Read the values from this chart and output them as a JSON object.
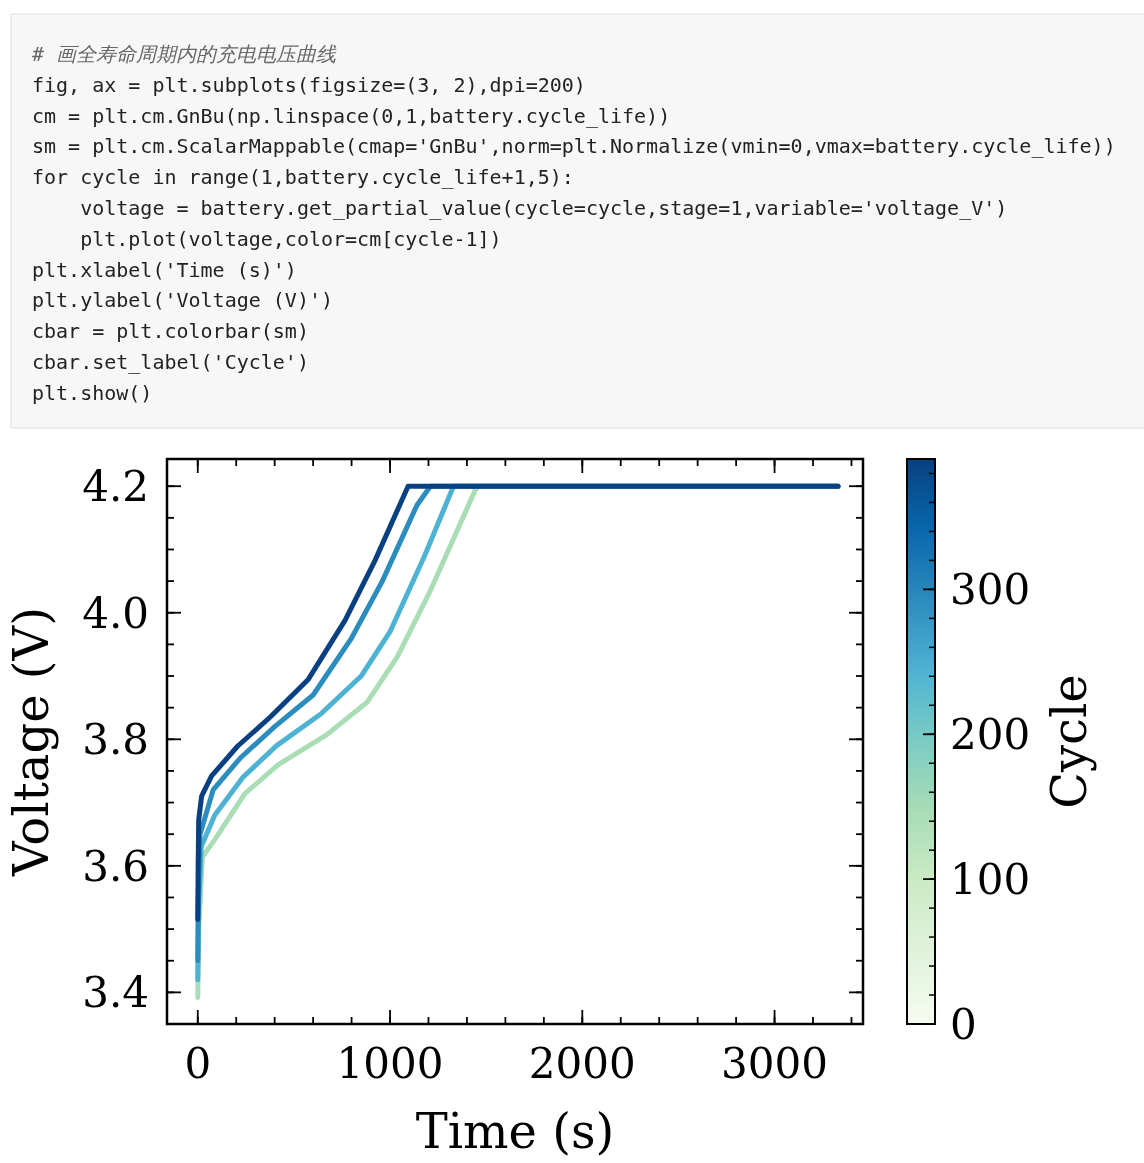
{
  "chart_data": {
    "type": "line",
    "xlabel": "Time (s)",
    "ylabel": "Voltage (V)",
    "clabel": "Cycle",
    "xlim": [
      -160,
      3460
    ],
    "ylim": [
      3.35,
      4.243
    ],
    "xticks": [
      0,
      1000,
      2000,
      3000
    ],
    "yticks": [
      3.4,
      3.6,
      3.8,
      {
        "value": 4,
        "label": "4.0"
      },
      4.2
    ],
    "clim": [
      0,
      390
    ],
    "cticks": [
      0,
      100,
      200,
      300
    ],
    "annotations": [
      "# 画全寿命周期内的充电电压曲线",
      "fig, ax = plt.subplots(figsize=(3, 2),dpi=200)",
      "cm = plt.cm.GnBu(np.linspace(0,1,battery.cycle_life))",
      "sm = plt.cm.ScalarMappable(cmap='GnBu',norm=plt.Normalize(vmin=0,vmax=battery.cycle_life))",
      "for cycle in range(1,battery.cycle_life+1,5):",
      "    voltage = battery.get_partial_value(cycle=cycle,stage=1,variable='voltage_V')",
      "    plt.plot(voltage,color=cm[cycle-1])",
      "plt.xlabel('Time (s)')",
      "plt.ylabel('Voltage (V)')",
      "cbar = plt.colorbar(sm)",
      "cbar.set_label('Cycle')",
      "plt.show()"
    ],
    "series": [
      {
        "color": "#a8ddb5",
        "x": [
          0,
          5,
          24,
          92,
          245,
          419,
          670,
          882,
          1037,
          1210,
          1442,
          1461,
          3330
        ],
        "values": [
          3.392,
          3.5,
          3.614,
          3.643,
          3.714,
          3.76,
          3.807,
          3.859,
          3.93,
          4.035,
          4.193,
          4.2,
          4.2
        ]
      },
      {
        "color": "#4eb3d3",
        "x": [
          0,
          4,
          18,
          88,
          235,
          410,
          640,
          850,
          1000,
          1180,
          1330,
          3330
        ],
        "values": [
          3.42,
          3.53,
          3.63,
          3.68,
          3.74,
          3.79,
          3.84,
          3.9,
          3.97,
          4.09,
          4.2,
          4.2
        ]
      },
      {
        "color": "#2b8cbe",
        "x": [
          0,
          3,
          12,
          80,
          220,
          400,
          600,
          800,
          960,
          1140,
          1210,
          3330
        ],
        "values": [
          3.45,
          3.56,
          3.65,
          3.72,
          3.77,
          3.82,
          3.87,
          3.96,
          4.05,
          4.17,
          4.2,
          4.2
        ]
      },
      {
        "color": "#084081",
        "x": [
          0,
          2,
          5,
          20,
          72,
          207,
          380,
          573,
          766,
          921,
          1094,
          3330
        ],
        "values": [
          3.515,
          3.6,
          3.673,
          3.71,
          3.742,
          3.789,
          3.836,
          3.894,
          3.988,
          4.082,
          4.2,
          4.2
        ]
      }
    ]
  }
}
